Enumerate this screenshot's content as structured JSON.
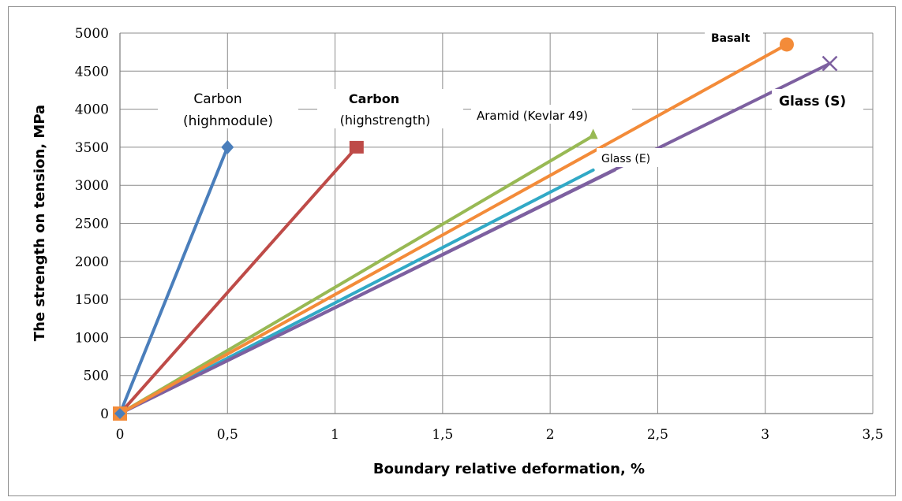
{
  "chart_data": {
    "type": "line",
    "xlabel": "Boundary relative deformation, %",
    "ylabel": "The strength on tension, MPa",
    "xlim": [
      0,
      3.5
    ],
    "ylim": [
      0,
      5000
    ],
    "x_ticks": [
      "0",
      "0,5",
      "1",
      "1,5",
      "2",
      "2,5",
      "3",
      "3,5"
    ],
    "y_ticks": [
      "0",
      "500",
      "1000",
      "1500",
      "2000",
      "2500",
      "3000",
      "3500",
      "4000",
      "4500",
      "5000"
    ],
    "grid": true,
    "legend": "none",
    "series": [
      {
        "name": "Carbon (highmodule)",
        "color": "#4a7ebb",
        "marker": "diamond",
        "points": [
          [
            0,
            0
          ],
          [
            0.5,
            3500
          ]
        ]
      },
      {
        "name": "Carbon (highstrength)",
        "color": "#be4b48",
        "marker": "square",
        "points": [
          [
            0,
            0
          ],
          [
            1.1,
            3500
          ]
        ]
      },
      {
        "name": "Aramid (Kevlar 49)",
        "color": "#98b954",
        "marker": "triangle",
        "points": [
          [
            0,
            0
          ],
          [
            2.2,
            3650
          ]
        ]
      },
      {
        "name": "",
        "color": "#31a9c6",
        "marker": "none",
        "points": [
          [
            0,
            0
          ],
          [
            2.2,
            3200
          ]
        ]
      },
      {
        "name": "Glass (E)",
        "color": "#7d60a0",
        "marker": "none",
        "points": [
          [
            0,
            0
          ],
          [
            2.3,
            3200
          ]
        ]
      },
      {
        "name": "Glass (S)",
        "color": "#7d60a0",
        "marker": "x",
        "points": [
          [
            0,
            0
          ],
          [
            3.3,
            4600
          ]
        ]
      },
      {
        "name": "Basalt",
        "color": "#f38b39",
        "marker": "circle",
        "points": [
          [
            0,
            0
          ],
          [
            3.1,
            4850
          ]
        ]
      }
    ],
    "labels": {
      "carbon_hm_line1": "Carbon",
      "carbon_hm_line2": "(highmodule)",
      "carbon_hs_line1": "Carbon",
      "carbon_hs_line2": "(highstrength)",
      "aramid": "Aramid (Kevlar 49)",
      "glass_e": "Glass (E)",
      "glass_s": "Glass (S)",
      "basalt": "Basalt"
    }
  }
}
